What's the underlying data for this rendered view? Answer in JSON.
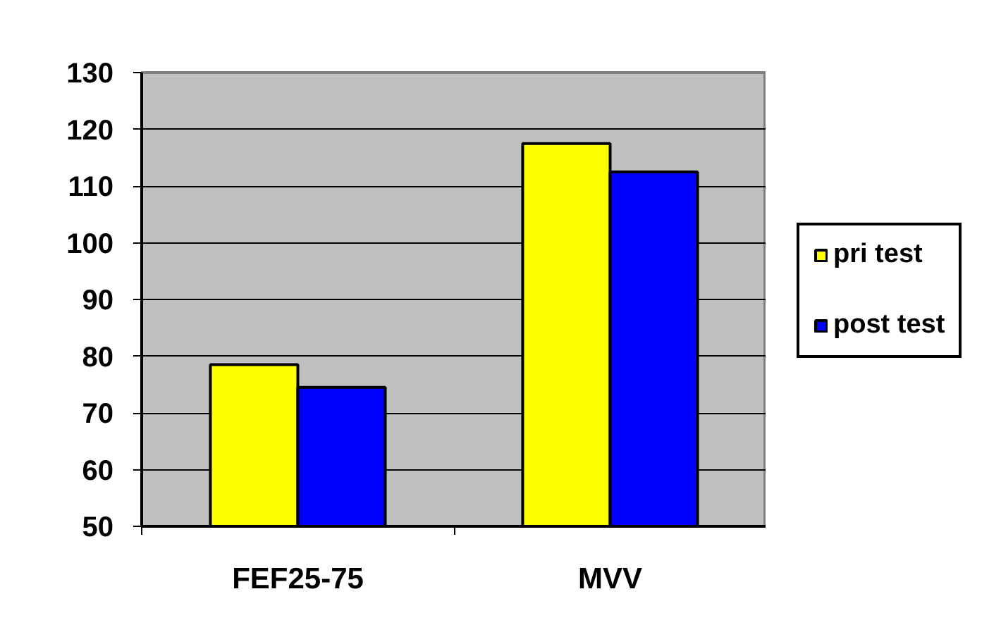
{
  "chart_data": {
    "type": "bar",
    "categories": [
      "FEF25-75",
      "MVV"
    ],
    "series": [
      {
        "name": "pri test",
        "color": "#ffff00",
        "values": [
          78.5,
          117.5
        ]
      },
      {
        "name": "post test",
        "color": "#0000ff",
        "values": [
          74.5,
          112.5
        ]
      }
    ],
    "ylim": [
      50,
      130
    ],
    "yticks": [
      50,
      60,
      70,
      80,
      90,
      100,
      110,
      120,
      130
    ],
    "grid": "y",
    "legend": "right"
  }
}
